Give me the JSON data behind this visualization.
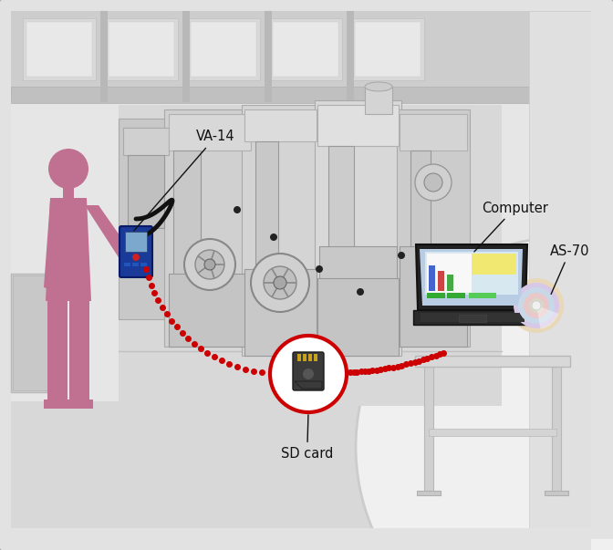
{
  "bg_outer": "#c0c0c0",
  "bg_inner": "#e4e4e4",
  "wall_color": "#e8e8e8",
  "wall_upper": "#d8d8d8",
  "floor_color": "#e0e0e0",
  "ceiling_color": "#c8c8c8",
  "person_color": "#c07090",
  "dotted_line_color": "#cc0000",
  "sd_circle_color": "#cc0000",
  "label_va14": "VA-14",
  "label_sd": "SD card",
  "label_computer": "Computer",
  "label_as70": "AS-70",
  "text_color": "#111111",
  "font_size": 10.5
}
